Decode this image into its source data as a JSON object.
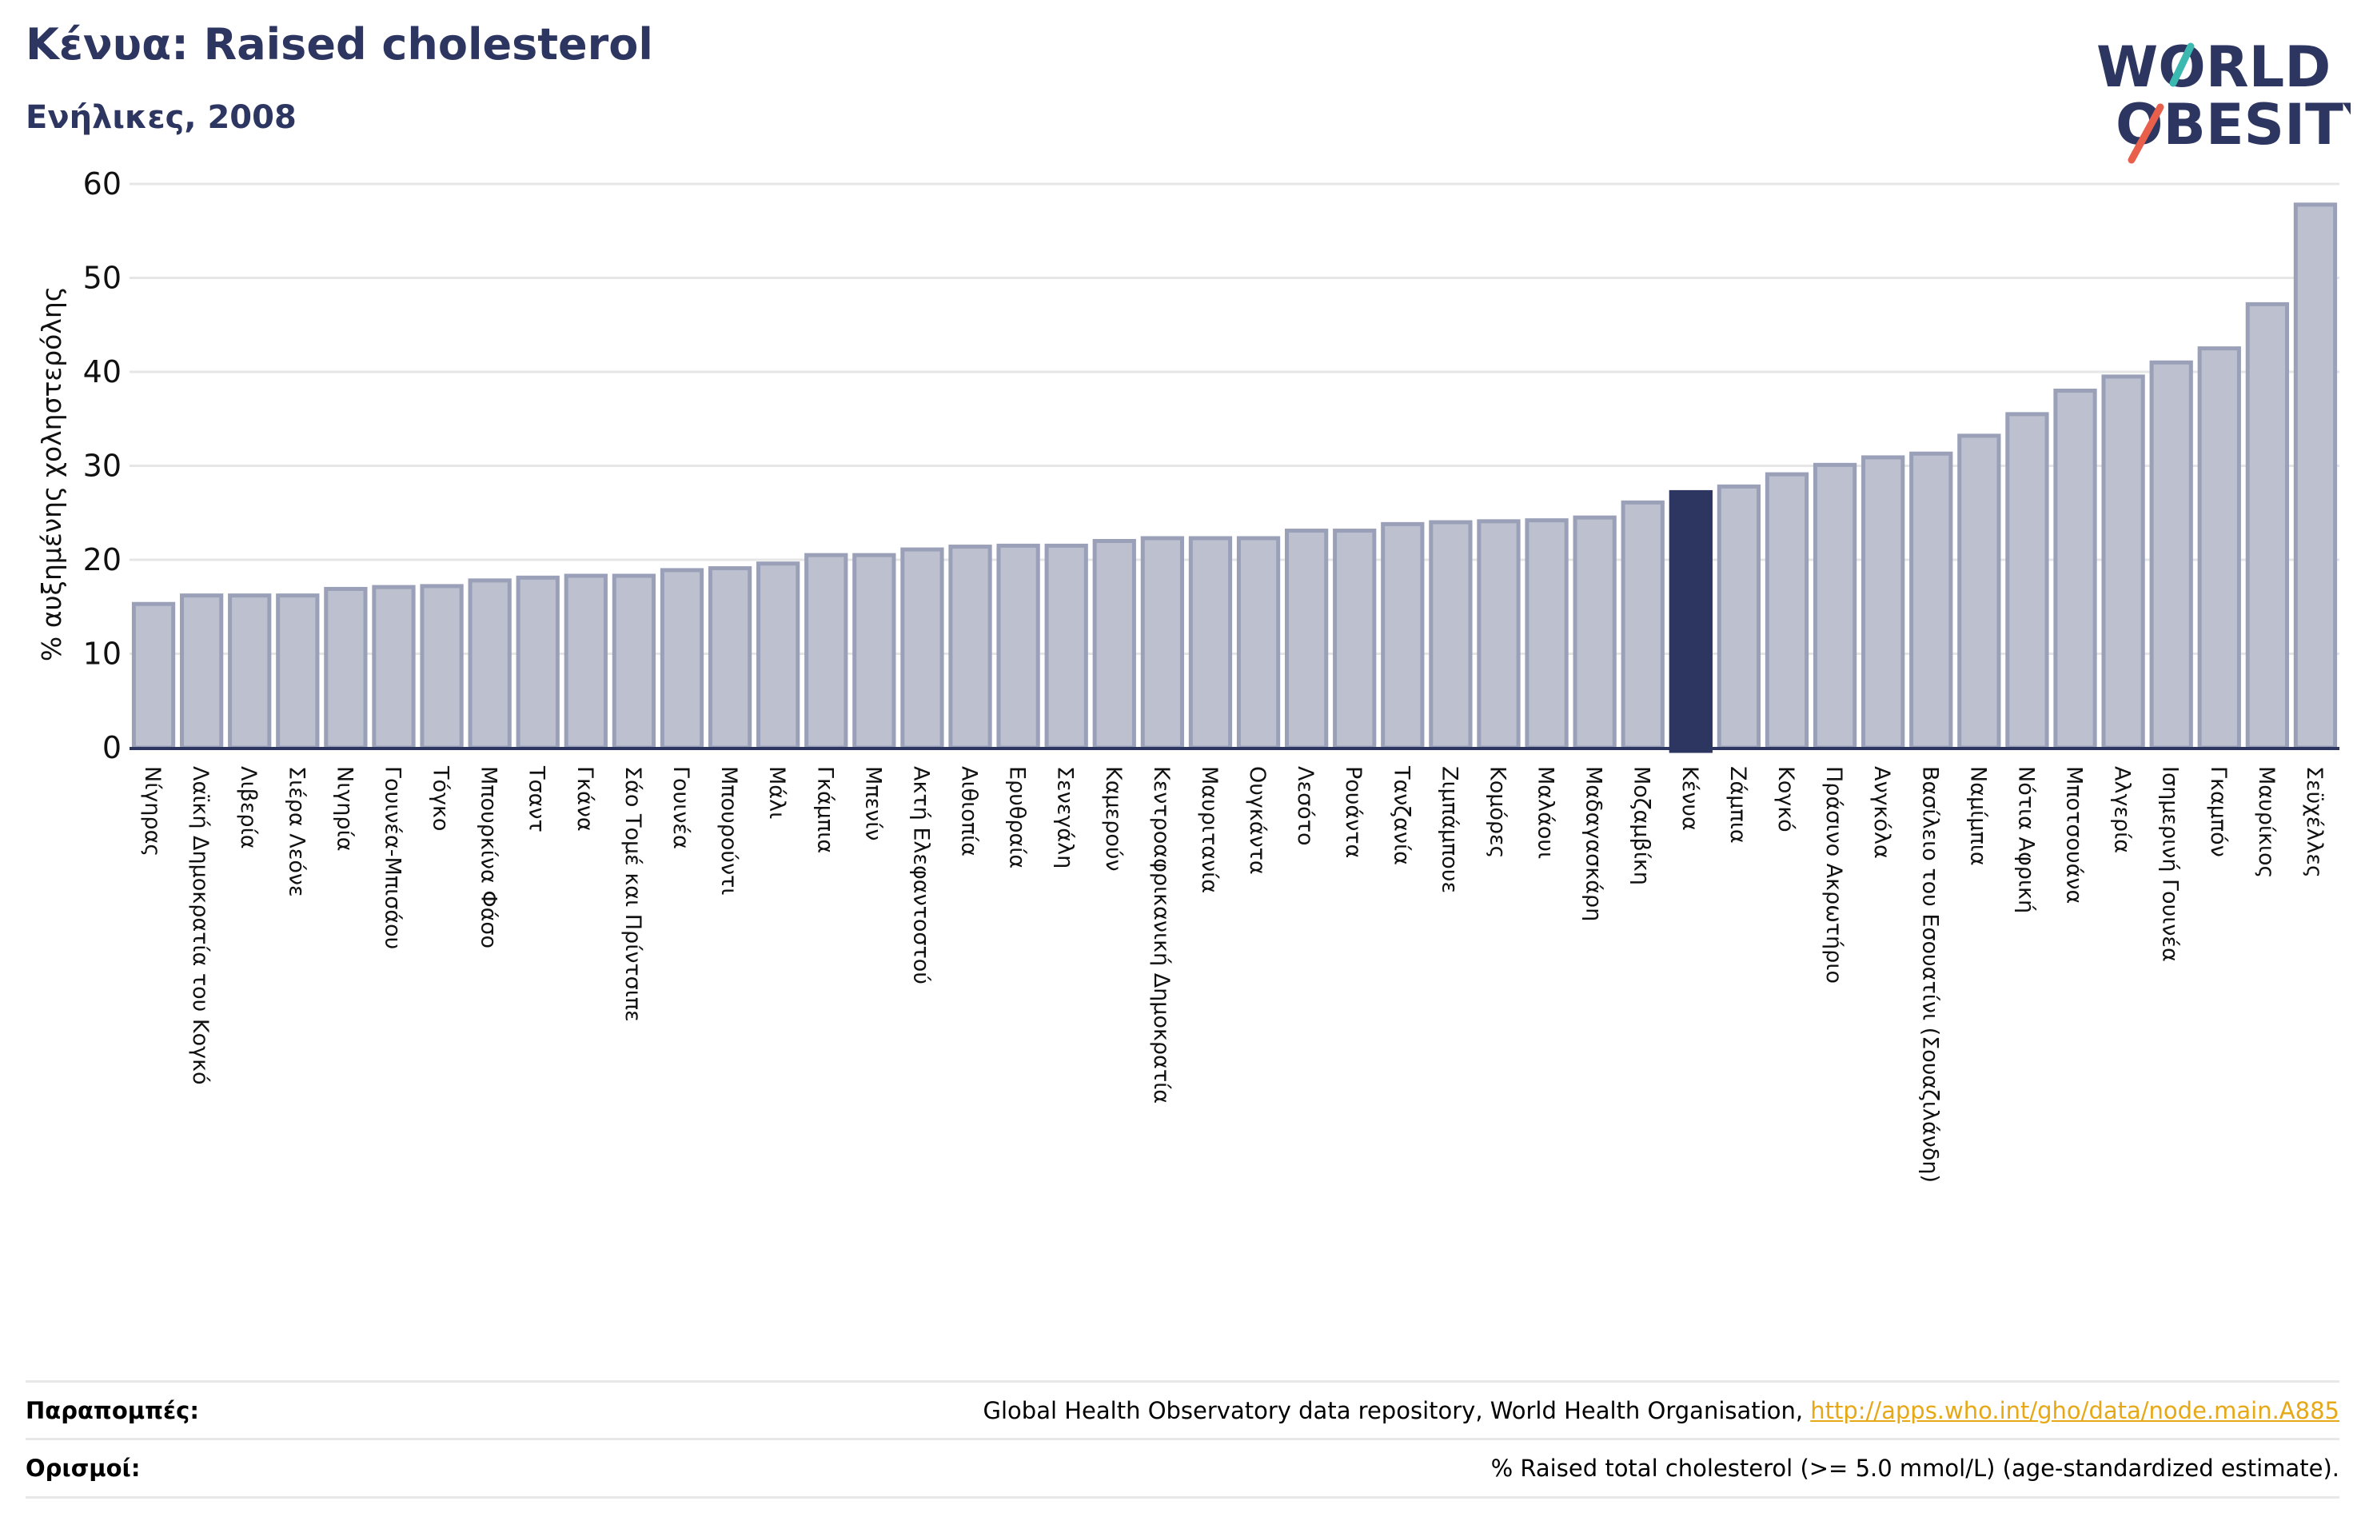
{
  "header": {
    "title": "Κένυα: Raised cholesterol",
    "subtitle": "Ενήλικες, 2008"
  },
  "logo": {
    "line1": "WORLD",
    "line2": "OBESITY",
    "text_color": "#2d3561",
    "slash_teal": "#3bb8b0",
    "slash_red": "#e8604c"
  },
  "colors": {
    "bar_fill": "#bcc0cf",
    "bar_stroke": "#9aa0b8",
    "highlight": "#2d3561",
    "axis": "#2d3561",
    "grid": "#e6e6e6"
  },
  "chart_data": {
    "type": "bar",
    "ylabel": "% αυξημένης χοληστερόλης",
    "ylim": [
      0,
      60
    ],
    "yticks": [
      0,
      10,
      20,
      30,
      40,
      50,
      60
    ],
    "grid": true,
    "highlight": "Κένυα",
    "categories": [
      "Νίγηρας",
      "Λαϊκή Δημοκρατία του Κογκό",
      "Λιβερία",
      "Σιέρα Λεόνε",
      "Νιγηρία",
      "Γουινέα-Μπισάου",
      "Τόγκο",
      "Μπουρκίνα Φάσο",
      "Τσαντ",
      "Γκάνα",
      "Σάο Τομέ και Πρίντσιπε",
      "Γουινέα",
      "Μπουρούντι",
      "Μάλι",
      "Γκάμπια",
      "Μπενίν",
      "Ακτή Ελεφαντοστού",
      "Αιθιοπία",
      "Ερυθραία",
      "Σενεγάλη",
      "Καμερούν",
      "Κεντροαφρικανική Δημοκρατία",
      "Μαυριτανία",
      "Ουγκάντα",
      "Λεσότο",
      "Ρουάντα",
      "Τανζανία",
      "Ζιμπάμπουε",
      "Κομόρες",
      "Μαλάουι",
      "Μαδαγασκάρη",
      "Μοζαμβίκη",
      "Κένυα",
      "Ζάμπια",
      "Κογκό",
      "Πράσινο Ακρωτήριο",
      "Ανγκόλα",
      "Βασίλειο του Εσουατίνι (Σουαζιλάνδη)",
      "Ναμίμπια",
      "Νότια Αφρική",
      "Μποτσουάνα",
      "Αλγερία",
      "Ισημερινή Γουινέα",
      "Γκαμπόν",
      "Μαυρίκιος",
      "Σεϋχέλλες"
    ],
    "values": [
      15.3,
      16.2,
      16.2,
      16.2,
      16.9,
      17.1,
      17.2,
      17.8,
      18.1,
      18.3,
      18.3,
      18.9,
      19.1,
      19.6,
      20.5,
      20.5,
      21.1,
      21.4,
      21.5,
      21.5,
      22.0,
      22.3,
      22.3,
      22.3,
      23.1,
      23.1,
      23.8,
      24.0,
      24.1,
      24.2,
      24.5,
      26.1,
      27.2,
      27.8,
      29.1,
      30.1,
      30.9,
      31.3,
      33.2,
      35.5,
      38.0,
      39.5,
      41.0,
      42.5,
      47.2,
      57.8
    ]
  },
  "footer": {
    "references_label": "Παραπομπές:",
    "references_text": "Global Health Observatory data repository, World Health Organisation,",
    "references_link": "http://apps.who.int/gho/data/node.main.A885",
    "definitions_label": "Ορισμοί:",
    "definitions_text": "% Raised total cholesterol (>= 5.0 mmol/L) (age-standardized estimate)."
  }
}
